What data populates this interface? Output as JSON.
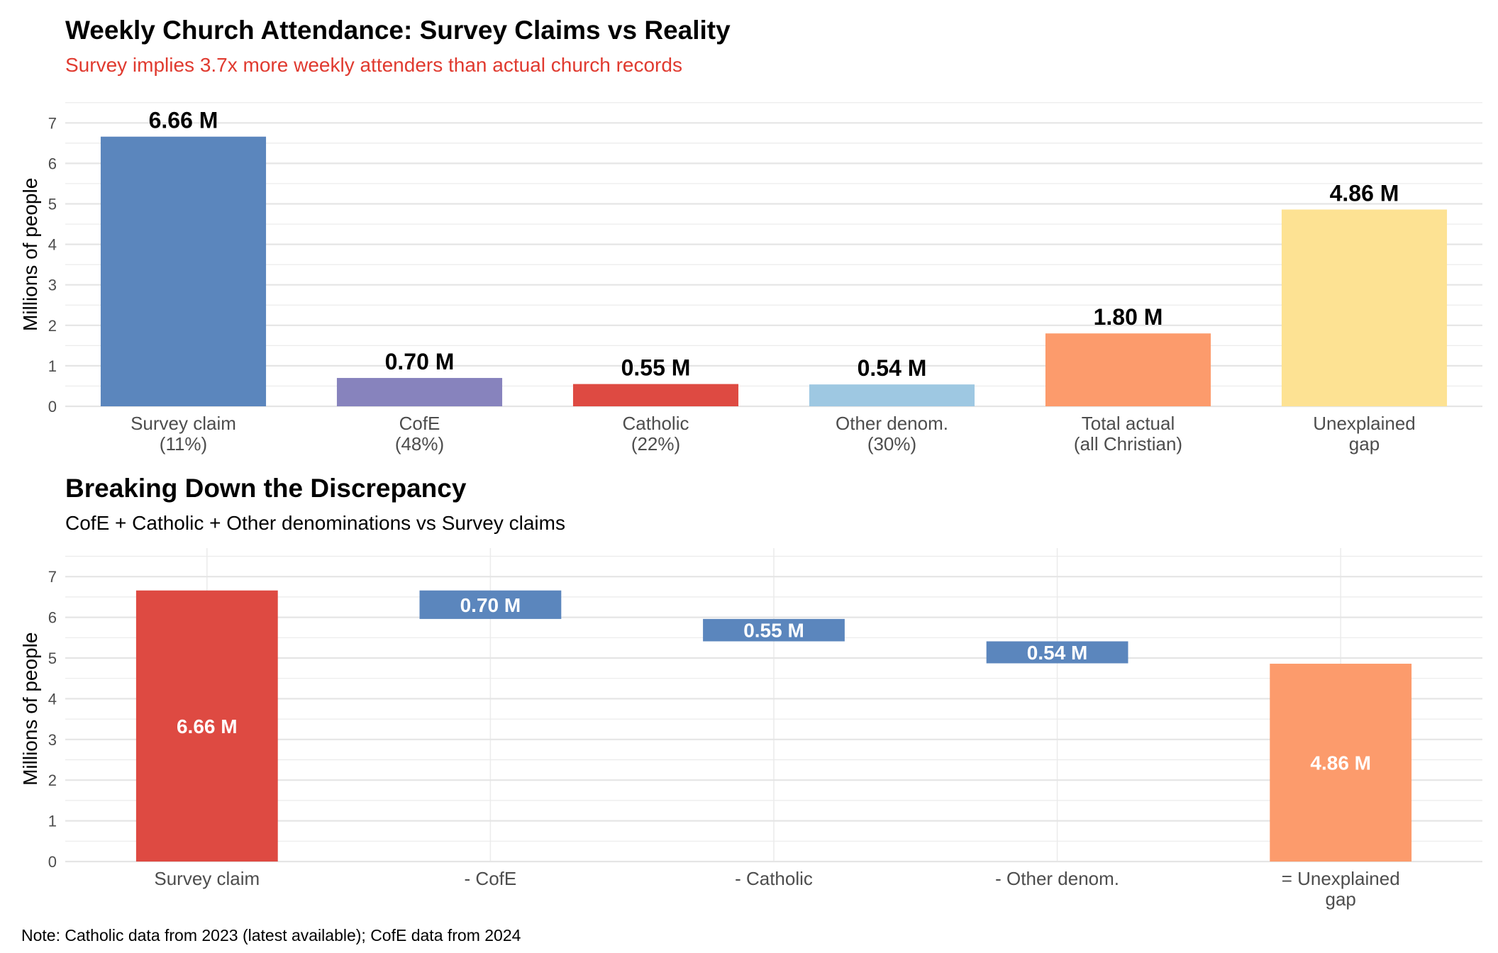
{
  "chart_data": [
    {
      "type": "bar",
      "title": "Weekly Church Attendance: Survey Claims vs Reality",
      "subtitle": "Survey implies 3.7x more weekly attenders than actual church records",
      "subtitle_color": "#e03a2f",
      "xlabel": "",
      "ylabel": "Millions of people",
      "ylim": [
        0,
        7.5
      ],
      "yticks": [
        0,
        1,
        2,
        3,
        4,
        5,
        6,
        7
      ],
      "grid": true,
      "categories": [
        [
          "Survey claim",
          "(11%)"
        ],
        [
          "CofE",
          "(48%)"
        ],
        [
          "Catholic",
          "(22%)"
        ],
        [
          "Other denom.",
          "(30%)"
        ],
        [
          "Total actual",
          "(all Christian)"
        ],
        [
          "Unexplained",
          "gap"
        ]
      ],
      "values": [
        6.66,
        0.7,
        0.55,
        0.54,
        1.8,
        4.86
      ],
      "labels": [
        "6.66 M",
        "0.70 M",
        "0.55 M",
        "0.54 M",
        "1.80 M",
        "4.86 M"
      ],
      "colors": [
        "#5b86bd",
        "#8783bd",
        "#de4a42",
        "#9ec8e2",
        "#fc9b6c",
        "#fde293"
      ]
    },
    {
      "type": "bar",
      "subtype": "waterfall",
      "title": "Breaking Down the Discrepancy",
      "subtitle": "CofE + Catholic + Other denominations vs Survey claims",
      "subtitle_color": "#000000",
      "xlabel": "",
      "ylabel": "Millions of people",
      "ylim": [
        0,
        7.5
      ],
      "yticks": [
        0,
        1,
        2,
        3,
        4,
        5,
        6,
        7
      ],
      "grid": true,
      "categories": [
        [
          "Survey claim"
        ],
        [
          "- CofE"
        ],
        [
          "- Catholic"
        ],
        [
          "- Other denom."
        ],
        [
          "= Unexplained",
          "gap"
        ]
      ],
      "segments": [
        {
          "start": 0,
          "end": 6.66,
          "label": "6.66 M",
          "color": "#de4a42"
        },
        {
          "start": 5.96,
          "end": 6.66,
          "label": "0.70 M",
          "color": "#5b86bd"
        },
        {
          "start": 5.41,
          "end": 5.96,
          "label": "0.55 M",
          "color": "#5b86bd"
        },
        {
          "start": 4.87,
          "end": 5.41,
          "label": "0.54 M",
          "color": "#5b86bd"
        },
        {
          "start": 0,
          "end": 4.86,
          "label": "4.86 M",
          "color": "#fc9b6c"
        }
      ]
    }
  ],
  "note": "Note: Catholic data from 2023 (latest available); CofE data from 2024"
}
